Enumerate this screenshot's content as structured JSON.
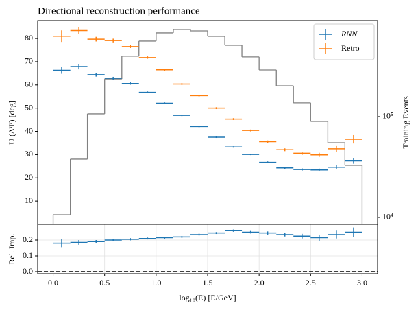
{
  "chart_data": [
    {
      "type": "errorbar",
      "title": "Directional reconstruction performance",
      "ylabel": "U (ΔΨ) [deg]",
      "y2label": "Training Events",
      "x": [
        0.083,
        0.25,
        0.417,
        0.583,
        0.75,
        0.917,
        1.083,
        1.25,
        1.417,
        1.583,
        1.75,
        1.917,
        2.083,
        2.25,
        2.417,
        2.583,
        2.75,
        2.917
      ],
      "bins": [
        0,
        0.167,
        0.333,
        0.5,
        0.667,
        0.833,
        1,
        1.167,
        1.333,
        1.5,
        1.667,
        1.833,
        2,
        2.167,
        2.333,
        2.5,
        2.667,
        2.833,
        3
      ],
      "series": [
        {
          "name": "RNN",
          "color": "#1f77b4",
          "values": [
            66.3,
            67.9,
            64.4,
            62.9,
            60.6,
            56.8,
            52.1,
            46.9,
            42.1,
            37.5,
            33.3,
            30.1,
            26.7,
            24.3,
            23.6,
            23.4,
            24.6,
            27.3
          ],
          "errors": [
            1.5,
            1.2,
            0.8,
            0.6,
            0.5,
            0.4,
            0.4,
            0.3,
            0.3,
            0.3,
            0.3,
            0.3,
            0.4,
            0.4,
            0.5,
            0.6,
            0.8,
            1.2
          ]
        },
        {
          "name": "Retro",
          "color": "#ff7f0e",
          "values": [
            81,
            83.4,
            79.7,
            79.1,
            76.5,
            71.8,
            66.5,
            60.4,
            55.4,
            50,
            45.3,
            40.4,
            35.6,
            32.1,
            30.6,
            29.9,
            32.5,
            36.6
          ],
          "errors": [
            2.5,
            1.5,
            1,
            0.8,
            0.6,
            0.5,
            0.4,
            0.4,
            0.4,
            0.4,
            0.4,
            0.4,
            0.5,
            0.6,
            0.7,
            0.9,
            1.2,
            1.8
          ]
        }
      ],
      "histogram": {
        "color": "#808080",
        "axis": "y2",
        "counts": [
          10650,
          37900,
          106500,
          236000,
          397000,
          560000,
          676000,
          731000,
          708000,
          625000,
          510000,
          391000,
          290000,
          202000,
          137000,
          89600,
          55100,
          32900
        ]
      },
      "xlim": [
        -0.15,
        3.15
      ],
      "ylim": [
        0,
        87.7
      ],
      "yticks": [
        10,
        20,
        30,
        40,
        50,
        60,
        70,
        80
      ],
      "y2lim": [
        8550,
        895000
      ],
      "y2log": true,
      "y2ticks": [
        {
          "value": 10000,
          "label": "10⁴"
        },
        {
          "value": 100000,
          "label": "10⁵"
        }
      ],
      "legend": "upper right",
      "grid": false
    },
    {
      "type": "errorbar",
      "ylabel": "Rel. Imp.",
      "xlabel": "log₁₀(E) [E/GeV]",
      "x": [
        0.083,
        0.25,
        0.417,
        0.583,
        0.75,
        0.917,
        1.083,
        1.25,
        1.417,
        1.583,
        1.75,
        1.917,
        2.083,
        2.25,
        2.417,
        2.583,
        2.75,
        2.917
      ],
      "bins": [
        0,
        0.167,
        0.333,
        0.5,
        0.667,
        0.833,
        1,
        1.167,
        1.333,
        1.5,
        1.667,
        1.833,
        2,
        2.167,
        2.333,
        2.5,
        2.667,
        2.833,
        3
      ],
      "series": [
        {
          "color": "#1f77b4",
          "values": [
            0.18,
            0.185,
            0.19,
            0.2,
            0.205,
            0.21,
            0.215,
            0.22,
            0.235,
            0.245,
            0.26,
            0.25,
            0.245,
            0.235,
            0.225,
            0.215,
            0.235,
            0.25
          ],
          "errors": [
            0.025,
            0.015,
            0.01,
            0.008,
            0.007,
            0.006,
            0.006,
            0.006,
            0.006,
            0.006,
            0.007,
            0.008,
            0.01,
            0.012,
            0.015,
            0.02,
            0.025,
            0.03
          ]
        }
      ],
      "xlim": [
        -0.15,
        3.15
      ],
      "xticks": [
        {
          "value": 0,
          "label": "0.0"
        },
        0.5,
        {
          "value": 1,
          "label": "1.0"
        },
        1.5,
        {
          "value": 2,
          "label": "2.0"
        },
        2.5,
        {
          "value": 3,
          "label": "3.0"
        }
      ],
      "ylim": [
        -0.013,
        0.3
      ],
      "yticks": [
        {
          "value": 0,
          "label": "0.0"
        },
        0.1,
        0.2
      ],
      "zero_line": true,
      "grid": true
    }
  ]
}
